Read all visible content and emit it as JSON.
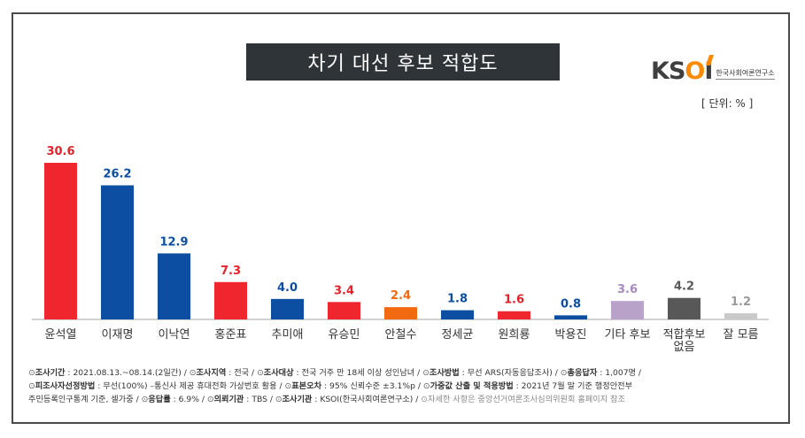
{
  "title": "차기 대선 후보 적합도",
  "logo": {
    "mark_k": "K",
    "mark_rest_s": "S",
    "mark_o": "O",
    "mark_i": "I",
    "sub": "한국사회여론연구소"
  },
  "unit": "[ 단위: % ]",
  "colors": {
    "red": "#f0262e",
    "blue": "#0b4ea2",
    "orange": "#f26a10",
    "lavender": "#b9a2c9",
    "dark_gray": "#585858",
    "light_gray": "#c9c9c9"
  },
  "chart_data": {
    "type": "bar",
    "categories": [
      "윤석열",
      "이재명",
      "이낙연",
      "홍준표",
      "추미애",
      "유승민",
      "안철수",
      "정세균",
      "원희룡",
      "박용진",
      "기타 후보",
      "적합후보 없음",
      "잘 모름"
    ],
    "values": [
      30.6,
      26.2,
      12.9,
      7.3,
      4.0,
      3.4,
      2.4,
      1.8,
      1.6,
      0.8,
      3.6,
      4.2,
      1.2
    ],
    "value_labels": [
      "30.6",
      "26.2",
      "12.9",
      "7.3",
      "4.0",
      "3.4",
      "2.4",
      "1.8",
      "1.6",
      "0.8",
      "3.6",
      "4.2",
      "1.2"
    ],
    "bar_colors": [
      "#f0262e",
      "#0b4ea2",
      "#0b4ea2",
      "#f0262e",
      "#0b4ea2",
      "#f0262e",
      "#f26a10",
      "#0b4ea2",
      "#f0262e",
      "#0b4ea2",
      "#b9a2c9",
      "#585858",
      "#c9c9c9"
    ],
    "label_colors": [
      "#e3222a",
      "#0b4ea2",
      "#0b4ea2",
      "#e3222a",
      "#0b4ea2",
      "#e3222a",
      "#f26a10",
      "#0b4ea2",
      "#e3222a",
      "#0b4ea2",
      "#a68bbd",
      "#585858",
      "#9a9a9a"
    ],
    "ylim": [
      0,
      32
    ],
    "grid": false,
    "legend": "none"
  },
  "footer": {
    "line1": [
      {
        "k": "조사기간",
        "v": "2021.08.13.~08.14.(2일간)"
      },
      {
        "k": "조사지역",
        "v": "전국"
      },
      {
        "k": "조사대상",
        "v": "전국 거주 만 18세 이상 성인남녀"
      },
      {
        "k": "조사방법",
        "v": "무선 ARS(자동응답조사)"
      },
      {
        "k": "총응답자",
        "v": "1,007명"
      }
    ],
    "line2": [
      {
        "k": "피조사자선정방법",
        "v": "무선(100%) –통신사 제공 휴대전화 가상번호 활용"
      },
      {
        "k": "표본오차",
        "v": "95% 신뢰수준 ±3.1%p"
      },
      {
        "k": "가중값 산출 및 적용방법",
        "v": "2021년 7월 말 기준 행정안전부"
      }
    ],
    "line3_lead": "주민등록인구통계 기준, 셀가중",
    "line3": [
      {
        "k": "응답률",
        "v": "6.9%"
      },
      {
        "k": "의뢰기관",
        "v": "TBS"
      },
      {
        "k": "조사기관",
        "v": "KSOI(한국사회여론연구소)"
      }
    ],
    "line3_tail": "자세한 사항은 중앙선거여론조사심의위원회 홈페이지 참조"
  }
}
